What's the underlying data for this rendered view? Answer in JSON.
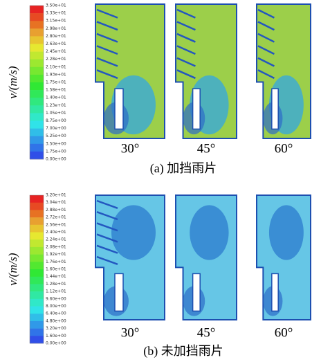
{
  "panels": [
    {
      "legend_title": "v/(m/s)",
      "legend_labels": [
        "3.50e+01",
        "3.33e+01",
        "3.15e+01",
        "2.98e+01",
        "2.80e+01",
        "2.63e+01",
        "2.45e+01",
        "2.28e+01",
        "2.10e+01",
        "1.93e+01",
        "1.75e+01",
        "1.58e+01",
        "1.40e+01",
        "1.23e+01",
        "1.05e+01",
        "8.75e+00",
        "7.00e+00",
        "5.25e+00",
        "3.50e+00",
        "1.75e+00",
        "0.00e+00"
      ],
      "angles": [
        "30°",
        "45°",
        "60°"
      ],
      "caption": "(a) 加挡雨片"
    },
    {
      "legend_title": "v/(m/s)",
      "legend_labels": [
        "3.20e+01",
        "3.04e+01",
        "2.88e+01",
        "2.72e+01",
        "2.56e+01",
        "2.40e+01",
        "2.24e+01",
        "2.08e+01",
        "1.92e+01",
        "1.76e+01",
        "1.60e+01",
        "1.44e+01",
        "1.28e+01",
        "1.12e+01",
        "9.60e+00",
        "8.00e+00",
        "6.40e+00",
        "4.80e+00",
        "3.20e+00",
        "1.60e+00",
        "0.00e+00"
      ],
      "angles": [
        "30°",
        "45°",
        "60°"
      ],
      "caption": "(b) 未加挡雨片"
    }
  ]
}
